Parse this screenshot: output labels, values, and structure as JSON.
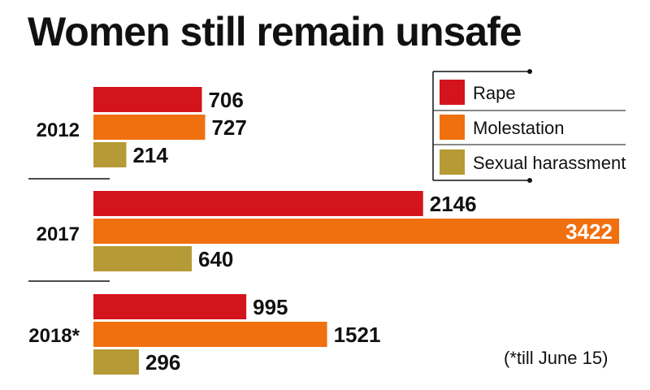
{
  "title": "Women still remain unsafe",
  "note": "(*till June 15)",
  "colors": {
    "rape": "#d4141c",
    "molestation": "#f07010",
    "sexual_harassment": "#b59a35"
  },
  "chart_data": {
    "type": "bar",
    "orientation": "horizontal",
    "title": "Women still remain unsafe",
    "categories": [
      "2012",
      "2017",
      "2018*"
    ],
    "series": [
      {
        "name": "Rape",
        "values": [
          706,
          2146,
          995
        ]
      },
      {
        "name": "Molestation",
        "values": [
          727,
          3422,
          1521
        ]
      },
      {
        "name": "Sexual harassment",
        "values": [
          214,
          640,
          296
        ]
      }
    ],
    "xlim": [
      0,
      3422
    ],
    "grid": false,
    "legend_position": "top-right"
  }
}
